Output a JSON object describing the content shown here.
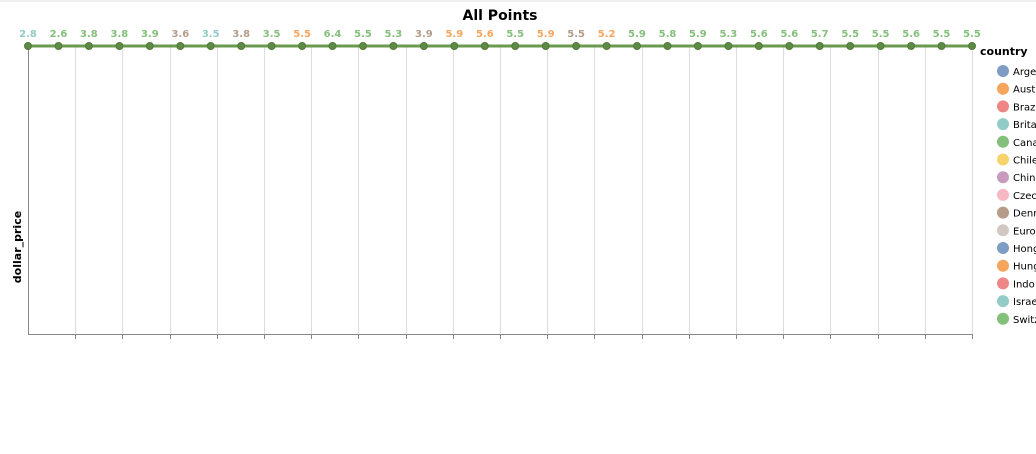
{
  "chart_data": {
    "type": "line",
    "title": "All Points",
    "ylabel": "dollar_price",
    "xlabel": "",
    "legend_title": "country",
    "legend_position": "right",
    "grid": true,
    "legend": [
      {
        "name": "Arge",
        "color": "#7f9cc4"
      },
      {
        "name": "Aust",
        "color": "#f6a55d"
      },
      {
        "name": "Braz",
        "color": "#ee8686"
      },
      {
        "name": "Brita",
        "color": "#93cbc6"
      },
      {
        "name": "Cana",
        "color": "#84bf7b"
      },
      {
        "name": "Chile",
        "color": "#f5d56b"
      },
      {
        "name": "Chin",
        "color": "#c89bbd"
      },
      {
        "name": "Czec",
        "color": "#f7b7c3"
      },
      {
        "name": "Denr",
        "color": "#b59c8a"
      },
      {
        "name": "Euro",
        "color": "#d2c7c3"
      },
      {
        "name": "Hong",
        "color": "#7f9cc4"
      },
      {
        "name": "Hung",
        "color": "#f6a55d"
      },
      {
        "name": "Indo",
        "color": "#ee8686"
      },
      {
        "name": "Israe",
        "color": "#93cbc6"
      },
      {
        "name": "Switz",
        "color": "#84bf7b"
      }
    ],
    "point_labels": [
      "2.8",
      "2.6",
      "3.8",
      "3.8",
      "3.9",
      "3.6",
      "3.5",
      "3.8",
      "3.5",
      "5.5",
      "6.4",
      "5.5",
      "5.3",
      "3.9",
      "5.9",
      "5.6",
      "5.5",
      "5.9",
      "5.5",
      "5.2",
      "5.9",
      "5.8",
      "5.9",
      "5.3",
      "5.6",
      "5.6",
      "5.7",
      "5.5",
      "5.5",
      "5.6",
      "5.5",
      "5.5"
    ],
    "point_colors": [
      "#93cbc6",
      "#84bf7b",
      "#84bf7b",
      "#84bf7b",
      "#84bf7b",
      "#b59c8a",
      "#93cbc6",
      "#b59c8a",
      "#84bf7b",
      "#f6a55d",
      "#84bf7b",
      "#84bf7b",
      "#84bf7b",
      "#b59c8a",
      "#f6a55d",
      "#f6a55d",
      "#84bf7b",
      "#f6a55d",
      "#b59c8a",
      "#f6a55d",
      "#84bf7b",
      "#84bf7b",
      "#84bf7b",
      "#84bf7b",
      "#84bf7b",
      "#84bf7b",
      "#84bf7b",
      "#84bf7b",
      "#84bf7b",
      "#84bf7b",
      "#84bf7b",
      "#84bf7b"
    ],
    "line_color": "#6a9b4d",
    "point_color": "#5d8a44"
  }
}
